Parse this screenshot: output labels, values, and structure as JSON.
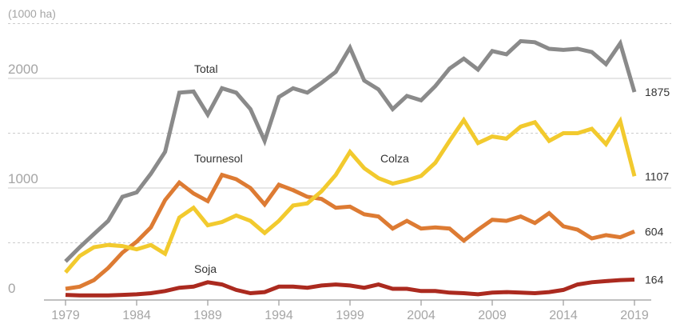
{
  "chart_data": {
    "type": "line",
    "unit_label": "(1000 ha)",
    "ylim": [
      0,
      2450
    ],
    "y_ticks": [
      0,
      1000,
      2000
    ],
    "x_ticks": [
      1979,
      1984,
      1989,
      1994,
      1999,
      2004,
      2009,
      2014,
      2019
    ],
    "grid": true,
    "x": [
      1979,
      1980,
      1981,
      1982,
      1983,
      1984,
      1985,
      1986,
      1987,
      1988,
      1989,
      1990,
      1991,
      1992,
      1993,
      1994,
      1995,
      1996,
      1997,
      1998,
      1999,
      2000,
      2001,
      2002,
      2003,
      2004,
      2005,
      2006,
      2007,
      2008,
      2009,
      2010,
      2011,
      2012,
      2013,
      2014,
      2015,
      2016,
      2017,
      2018,
      2019
    ],
    "series": [
      {
        "name": "Total",
        "color": "#8a8a8a",
        "end_label": "1875",
        "values": [
          330,
          460,
          580,
          700,
          920,
          960,
          1130,
          1330,
          1870,
          1880,
          1670,
          1910,
          1870,
          1720,
          1430,
          1830,
          1910,
          1870,
          1960,
          2060,
          2280,
          1980,
          1900,
          1720,
          1840,
          1800,
          1930,
          2090,
          2180,
          2080,
          2250,
          2220,
          2340,
          2330,
          2270,
          2260,
          2270,
          2240,
          2130,
          2320,
          1875
        ]
      },
      {
        "name": "Tournesol",
        "color": "#dd7b33",
        "end_label": "604",
        "values": [
          80,
          100,
          160,
          270,
          410,
          510,
          640,
          890,
          1050,
          950,
          880,
          1120,
          1080,
          1000,
          850,
          1030,
          980,
          920,
          900,
          820,
          830,
          760,
          740,
          630,
          700,
          630,
          640,
          630,
          520,
          620,
          710,
          700,
          740,
          680,
          770,
          650,
          620,
          540,
          570,
          550,
          604
        ]
      },
      {
        "name": "Colza",
        "color": "#f2ca2e",
        "end_label": "1107",
        "values": [
          230,
          380,
          460,
          480,
          470,
          440,
          480,
          400,
          730,
          820,
          660,
          690,
          750,
          700,
          590,
          700,
          840,
          860,
          970,
          1120,
          1330,
          1180,
          1090,
          1040,
          1070,
          1110,
          1230,
          1430,
          1620,
          1410,
          1470,
          1450,
          1560,
          1600,
          1430,
          1500,
          1500,
          1540,
          1400,
          1610,
          1107
        ]
      },
      {
        "name": "Soja",
        "color": "#ab2a1f",
        "end_label": "164",
        "values": [
          25,
          20,
          20,
          20,
          25,
          30,
          40,
          60,
          90,
          100,
          140,
          120,
          70,
          40,
          50,
          100,
          100,
          90,
          110,
          120,
          110,
          90,
          120,
          80,
          80,
          60,
          60,
          45,
          40,
          30,
          45,
          50,
          45,
          40,
          50,
          70,
          120,
          140,
          150,
          160,
          164
        ]
      }
    ]
  }
}
